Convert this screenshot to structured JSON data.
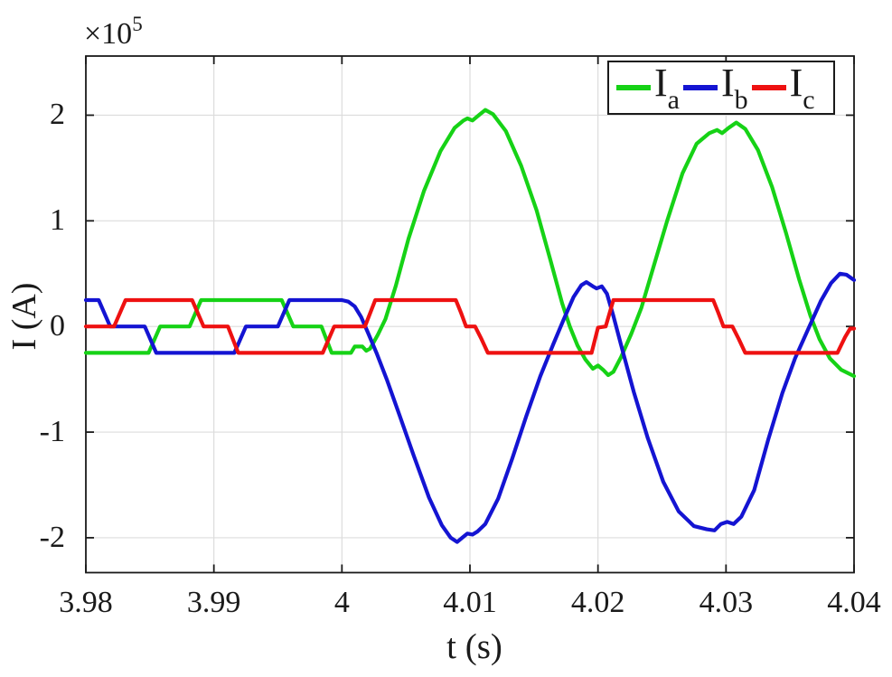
{
  "figure": {
    "offset_label": "×10",
    "offset_exponent": "5",
    "xlabel": "t (s)",
    "ylabel": "I (A)",
    "background": "#ffffff",
    "axis_color": "#1a1a1a",
    "grid_color": "#dcdcdc"
  },
  "legend": {
    "position": "top-right",
    "entries": [
      {
        "label": "I",
        "sub": "a",
        "color": "#16d216"
      },
      {
        "label": "I",
        "sub": "b",
        "color": "#1414d2"
      },
      {
        "label": "I",
        "sub": "c",
        "color": "#ee1111"
      }
    ]
  },
  "chart_data": {
    "type": "line",
    "title": "",
    "xlabel": "t (s)",
    "ylabel": "I (A)",
    "y_scale_label": "×10^5",
    "values_unit": "A, in units of 1e5",
    "grid": true,
    "legend_position": "top-right",
    "xlim": [
      3.98,
      4.04
    ],
    "ylim_1e5": [
      -2.33,
      2.56
    ],
    "xtick_values": [
      3.98,
      3.99,
      4.0,
      4.01,
      4.02,
      4.03,
      4.04
    ],
    "xtick_labels": [
      "3.98",
      "3.99",
      "4",
      "4.01",
      "4.02",
      "4.03",
      "4.04"
    ],
    "ytick_values": [
      -2,
      -1,
      0,
      1,
      2
    ],
    "ytick_labels": [
      "-2",
      "-1",
      "0",
      "1",
      "2"
    ],
    "series": [
      {
        "name": "I_a",
        "color": "#16d216",
        "points": [
          [
            3.98,
            -0.25
          ],
          [
            3.9849,
            -0.25
          ],
          [
            3.9858,
            0
          ],
          [
            3.9881,
            0
          ],
          [
            3.989,
            0.25
          ],
          [
            3.9953,
            0.25
          ],
          [
            3.9962,
            0
          ],
          [
            3.9984,
            0
          ],
          [
            3.9992,
            -0.25
          ],
          [
            4.0007,
            -0.25
          ],
          [
            4.001,
            -0.19
          ],
          [
            4.0016,
            -0.19
          ],
          [
            4.0019,
            -0.23
          ],
          [
            4.0022,
            -0.21
          ],
          [
            4.0028,
            -0.08
          ],
          [
            4.0034,
            0.07
          ],
          [
            4.0042,
            0.38
          ],
          [
            4.0052,
            0.83
          ],
          [
            4.0064,
            1.28
          ],
          [
            4.0077,
            1.66
          ],
          [
            4.0088,
            1.88
          ],
          [
            4.0095,
            1.95
          ],
          [
            4.0098,
            1.97
          ],
          [
            4.0102,
            1.95
          ],
          [
            4.0107,
            2.0
          ],
          [
            4.0112,
            2.05
          ],
          [
            4.0118,
            2.01
          ],
          [
            4.0128,
            1.85
          ],
          [
            4.014,
            1.52
          ],
          [
            4.0152,
            1.1
          ],
          [
            4.0163,
            0.62
          ],
          [
            4.0172,
            0.22
          ],
          [
            4.0178,
            0.0
          ],
          [
            4.0184,
            -0.18
          ],
          [
            4.019,
            -0.31
          ],
          [
            4.0196,
            -0.4
          ],
          [
            4.02,
            -0.37
          ],
          [
            4.0204,
            -0.41
          ],
          [
            4.0208,
            -0.46
          ],
          [
            4.0212,
            -0.43
          ],
          [
            4.0218,
            -0.29
          ],
          [
            4.0226,
            -0.07
          ],
          [
            4.0234,
            0.18
          ],
          [
            4.0243,
            0.55
          ],
          [
            4.0254,
            1.0
          ],
          [
            4.0266,
            1.45
          ],
          [
            4.0277,
            1.73
          ],
          [
            4.0287,
            1.83
          ],
          [
            4.0293,
            1.86
          ],
          [
            4.0297,
            1.83
          ],
          [
            4.0302,
            1.88
          ],
          [
            4.0308,
            1.93
          ],
          [
            4.0315,
            1.87
          ],
          [
            4.0325,
            1.67
          ],
          [
            4.0336,
            1.32
          ],
          [
            4.0347,
            0.88
          ],
          [
            4.0357,
            0.45
          ],
          [
            4.0366,
            0.1
          ],
          [
            4.0373,
            -0.12
          ],
          [
            4.0381,
            -0.3
          ],
          [
            4.039,
            -0.41
          ],
          [
            4.04,
            -0.47
          ]
        ]
      },
      {
        "name": "I_b",
        "color": "#1414d2",
        "points": [
          [
            3.98,
            0.25
          ],
          [
            3.981,
            0.25
          ],
          [
            3.9819,
            0
          ],
          [
            3.9846,
            0
          ],
          [
            3.9855,
            -0.25
          ],
          [
            3.9916,
            -0.25
          ],
          [
            3.9925,
            0
          ],
          [
            3.995,
            0
          ],
          [
            3.9959,
            0.25
          ],
          [
            4.0,
            0.25
          ],
          [
            4.0005,
            0.235
          ],
          [
            4.001,
            0.19
          ],
          [
            4.0015,
            0.09
          ],
          [
            4.002,
            -0.05
          ],
          [
            4.0027,
            -0.25
          ],
          [
            4.0035,
            -0.5
          ],
          [
            4.0045,
            -0.84
          ],
          [
            4.0056,
            -1.22
          ],
          [
            4.0068,
            -1.62
          ],
          [
            4.0078,
            -1.88
          ],
          [
            4.0085,
            -2.0
          ],
          [
            4.009,
            -2.04
          ],
          [
            4.0094,
            -2.0
          ],
          [
            4.0098,
            -1.96
          ],
          [
            4.0102,
            -1.97
          ],
          [
            4.0106,
            -1.94
          ],
          [
            4.0112,
            -1.87
          ],
          [
            4.0122,
            -1.63
          ],
          [
            4.0133,
            -1.25
          ],
          [
            4.0144,
            -0.85
          ],
          [
            4.0155,
            -0.47
          ],
          [
            4.0165,
            -0.17
          ],
          [
            4.0173,
            0.06
          ],
          [
            4.0181,
            0.28
          ],
          [
            4.0187,
            0.39
          ],
          [
            4.0191,
            0.42
          ],
          [
            4.0196,
            0.38
          ],
          [
            4.0199,
            0.36
          ],
          [
            4.0203,
            0.38
          ],
          [
            4.0207,
            0.31
          ],
          [
            4.0212,
            0.1
          ],
          [
            4.0219,
            -0.22
          ],
          [
            4.0228,
            -0.62
          ],
          [
            4.0239,
            -1.06
          ],
          [
            4.0251,
            -1.47
          ],
          [
            4.0263,
            -1.75
          ],
          [
            4.0275,
            -1.89
          ],
          [
            4.0285,
            -1.92
          ],
          [
            4.0291,
            -1.93
          ],
          [
            4.0296,
            -1.87
          ],
          [
            4.0301,
            -1.85
          ],
          [
            4.0306,
            -1.87
          ],
          [
            4.0312,
            -1.8
          ],
          [
            4.0322,
            -1.55
          ],
          [
            4.0333,
            -1.07
          ],
          [
            4.0344,
            -0.63
          ],
          [
            4.0354,
            -0.3
          ],
          [
            4.0364,
            -0.03
          ],
          [
            4.0374,
            0.24
          ],
          [
            4.0382,
            0.41
          ],
          [
            4.0389,
            0.5
          ],
          [
            4.0394,
            0.49
          ],
          [
            4.04,
            0.44
          ]
        ]
      },
      {
        "name": "I_c",
        "color": "#ee1111",
        "points": [
          [
            3.98,
            0
          ],
          [
            3.9822,
            0
          ],
          [
            3.9831,
            0.25
          ],
          [
            3.9883,
            0.25
          ],
          [
            3.9892,
            0
          ],
          [
            3.9911,
            0
          ],
          [
            3.9919,
            -0.25
          ],
          [
            3.9985,
            -0.25
          ],
          [
            3.9994,
            0
          ],
          [
            4.0018,
            0
          ],
          [
            4.0026,
            0.25
          ],
          [
            4.0089,
            0.25
          ],
          [
            4.0093,
            0.13
          ],
          [
            4.0097,
            0
          ],
          [
            4.0104,
            0
          ],
          [
            4.0109,
            -0.12
          ],
          [
            4.0114,
            -0.25
          ],
          [
            4.0195,
            -0.25
          ],
          [
            4.02,
            -0.01
          ],
          [
            4.0206,
            0
          ],
          [
            4.0212,
            0.25
          ],
          [
            4.029,
            0.25
          ],
          [
            4.0294,
            0.13
          ],
          [
            4.0298,
            0
          ],
          [
            4.0305,
            0
          ],
          [
            4.031,
            -0.12
          ],
          [
            4.0315,
            -0.25
          ],
          [
            4.0387,
            -0.25
          ],
          [
            4.0393,
            -0.1
          ],
          [
            4.0397,
            -0.02
          ],
          [
            4.04,
            -0.02
          ]
        ]
      }
    ]
  }
}
